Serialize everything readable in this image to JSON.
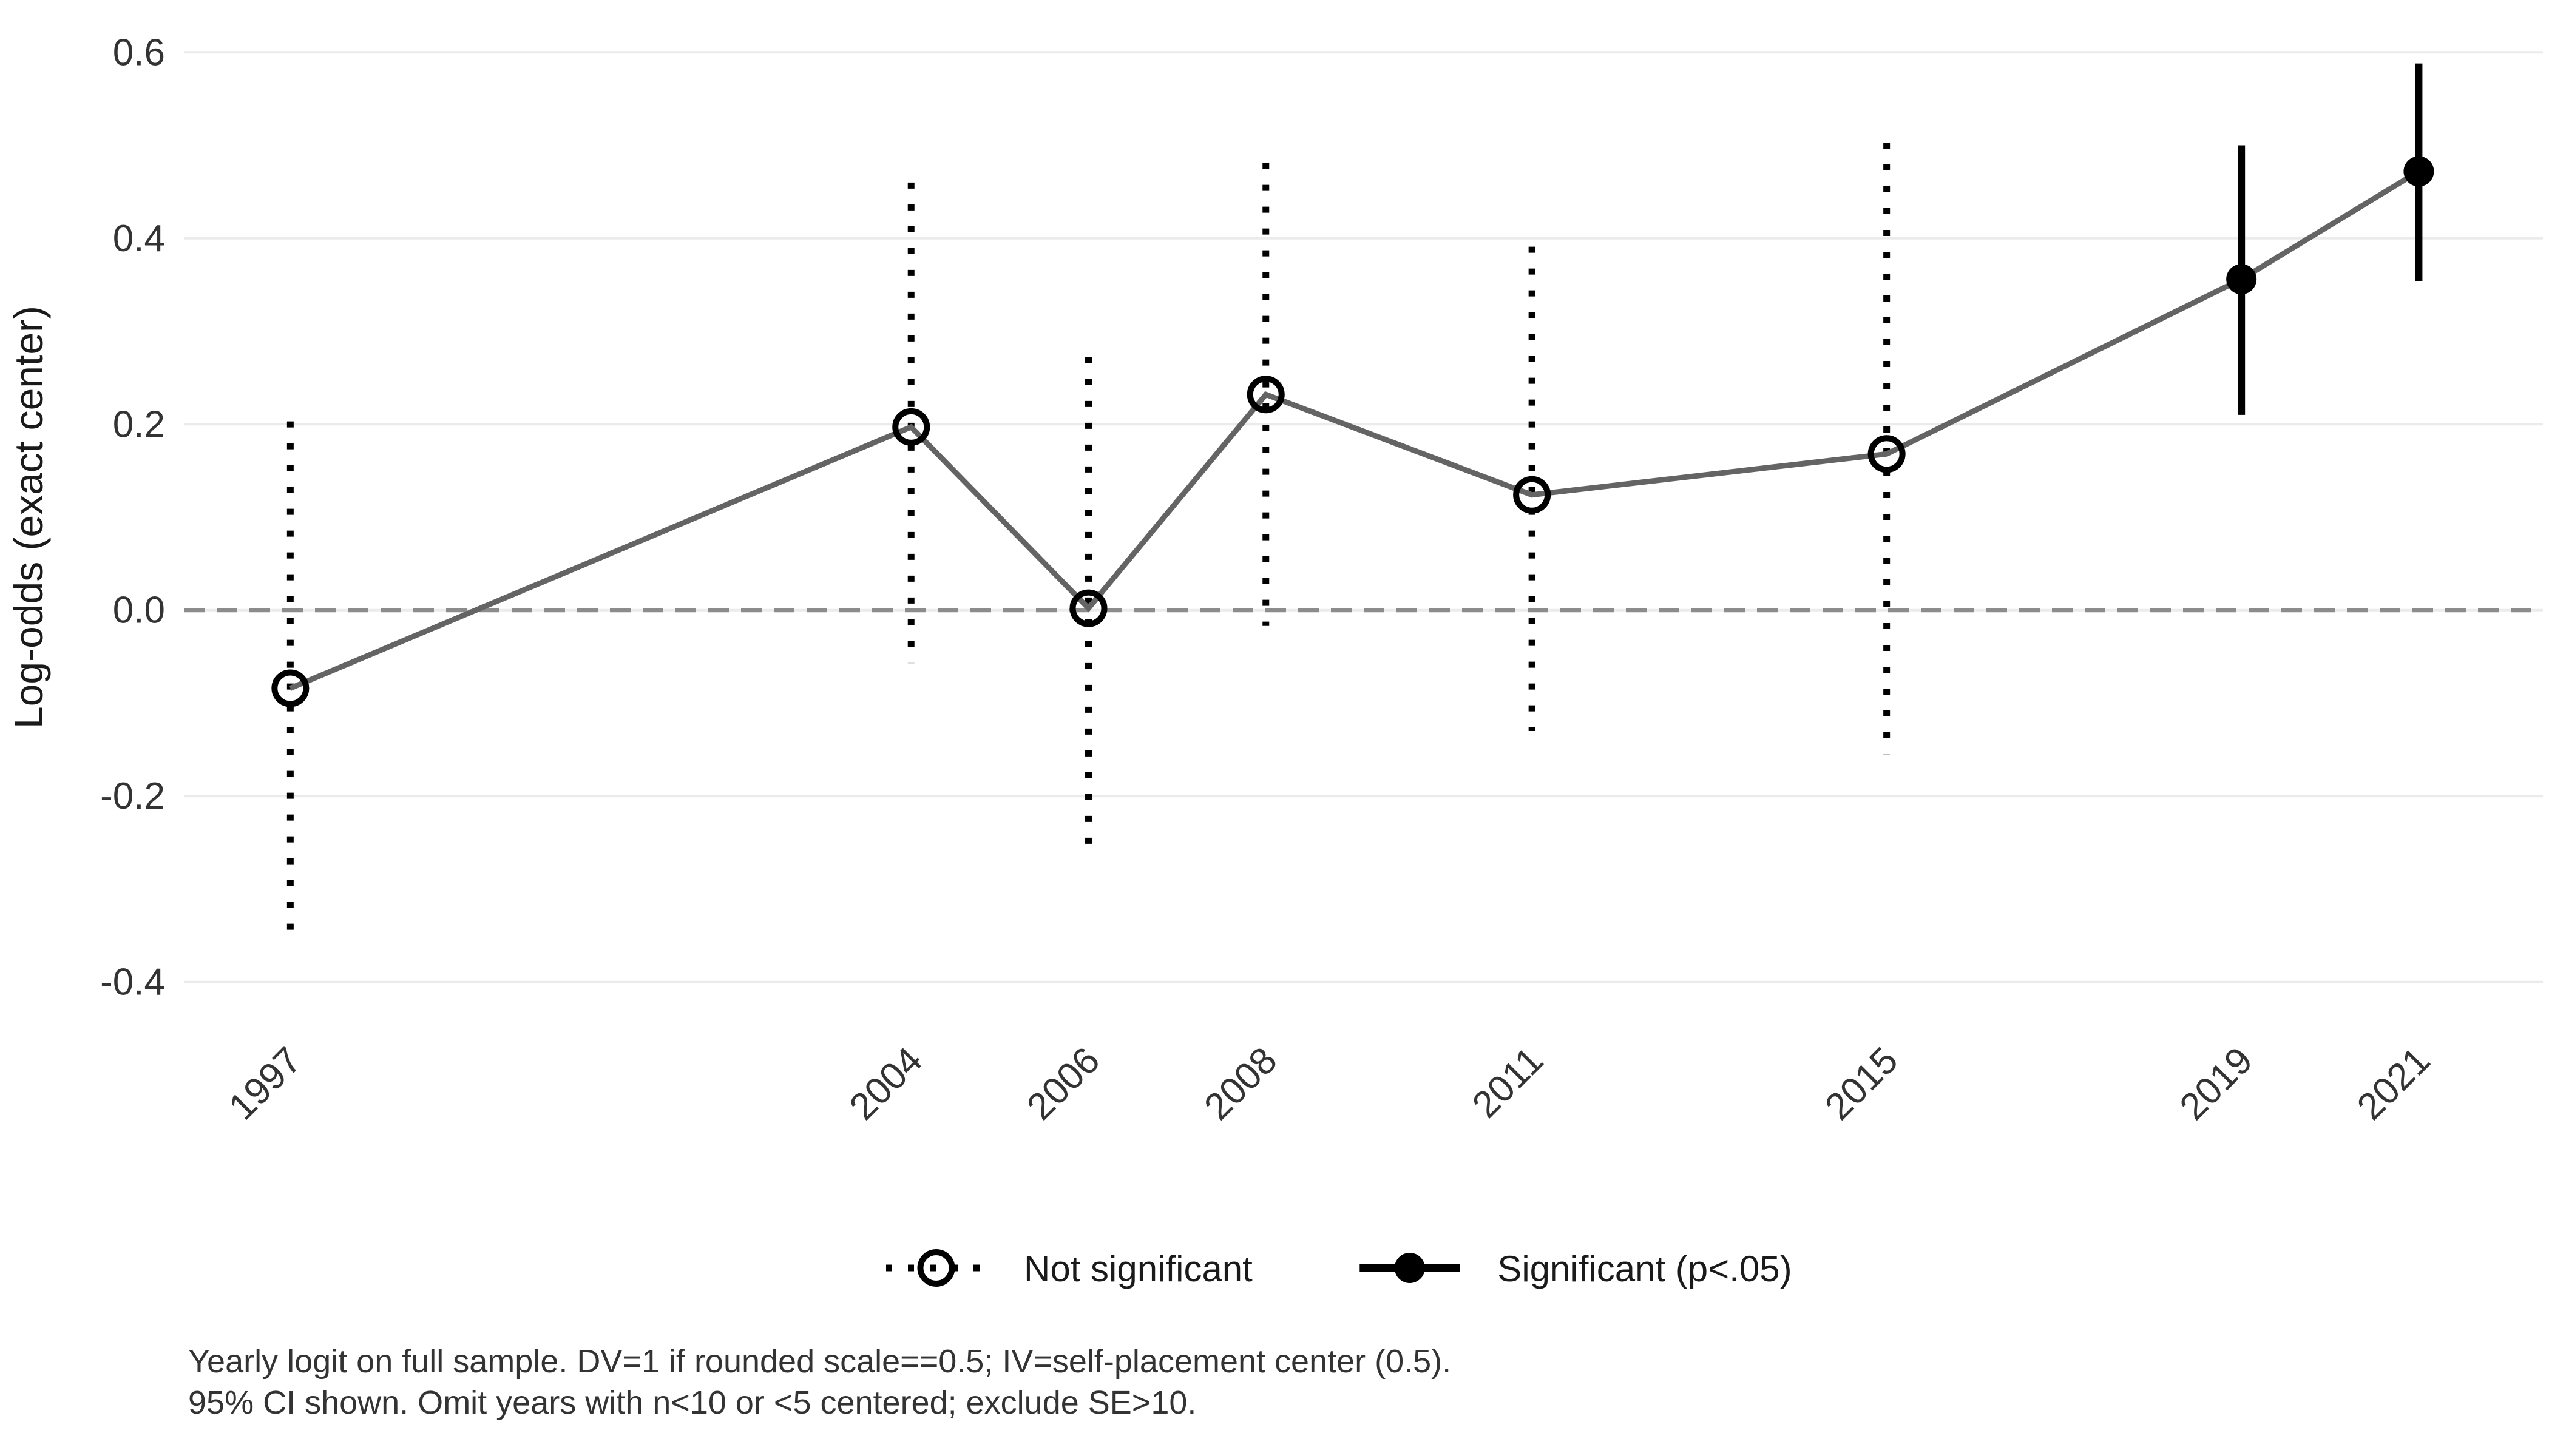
{
  "chart_data": {
    "type": "line",
    "title": "",
    "xlabel": "",
    "ylabel": "Log-odds (exact center)",
    "x": [
      1997,
      2004,
      2006,
      2008,
      2011,
      2015,
      2019,
      2021
    ],
    "series": [
      {
        "name": "estimate",
        "values": [
          -0.084,
          0.197,
          0.002,
          0.232,
          0.124,
          0.168,
          0.356,
          0.472
        ]
      },
      {
        "name": "ci_lower",
        "values": [
          -0.35,
          -0.057,
          -0.268,
          -0.017,
          -0.13,
          -0.155,
          0.21,
          0.354
        ]
      },
      {
        "name": "ci_upper",
        "values": [
          0.203,
          0.46,
          0.272,
          0.481,
          0.391,
          0.503,
          0.5,
          0.588
        ]
      },
      {
        "name": "significant",
        "values": [
          false,
          false,
          false,
          false,
          false,
          false,
          true,
          true
        ]
      }
    ],
    "xticks": {
      "values": [
        1997,
        2004,
        2006,
        2008,
        2011,
        2015,
        2019,
        2021
      ],
      "labels": [
        "1997",
        "2004",
        "2006",
        "2008",
        "2011",
        "2015",
        "2019",
        "2021"
      ]
    },
    "yticks": {
      "values": [
        0.6,
        0.4,
        0.2,
        0.0,
        -0.2,
        -0.4
      ],
      "labels": [
        "0.6",
        "0.4",
        "0.2",
        "0.0",
        "-0.2",
        "-0.4"
      ]
    },
    "xlim": [
      1995.8,
      2022.4
    ],
    "ylim": [
      -0.44,
      0.64
    ],
    "grid": "horizontal-major-only",
    "reference_line_y": 0,
    "legend": {
      "position": "bottom-center",
      "entries": [
        {
          "label": "Not significant",
          "style": "dotted-open-circle"
        },
        {
          "label": "Significant (p<.05)",
          "style": "solid-filled-circle"
        }
      ]
    },
    "caption_lines": [
      "Yearly logit on full sample. DV=1 if rounded scale==0.5; IV=self-placement center (0.5).",
      "95% CI shown. Omit years with n<10 or <5 centered; exclude SE>10."
    ],
    "colors": {
      "background": "#ffffff",
      "gridline": "#EBEBEB",
      "zero_line": "#8C8C8C",
      "trend_line": "#646464",
      "ci_line": "#000000",
      "point_stroke": "#000000",
      "open_point_fill": "none",
      "tick_text": "#333333",
      "axis_title_text": "#1a1a1a",
      "caption_text": "#333333",
      "legend_text": "#1a1a1a"
    }
  }
}
